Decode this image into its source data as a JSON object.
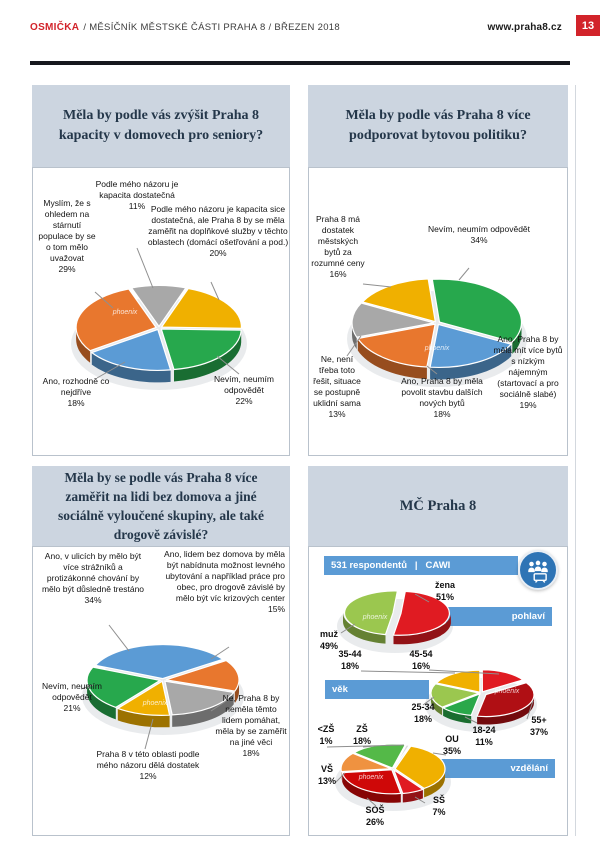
{
  "header": {
    "magazine": "OSMIČKA",
    "subtitle": "/ MĚSÍČNÍK MĚSTSKÉ ČÁSTI PRAHA 8 / BŘEZEN 2018",
    "website": "www.praha8.cz",
    "page_number": "13"
  },
  "demographics": {
    "panel_title": "MČ Praha 8",
    "respondents_bar": "531 respondentů   |   CAWI"
  },
  "colors": {
    "accent_red": "#d2232a",
    "bar_blue": "#5b9bd5",
    "icon_blue": "#2e74b5",
    "panel_header": "#ccd5e0",
    "rule_black": "#16181d"
  },
  "chart_data": [
    {
      "id": "seniors",
      "type": "pie",
      "title": "Měla by podle vás zvýšit Praha 8 kapacity v domovech pro seniory?",
      "watermark": "phoenix",
      "slices": [
        {
          "label": "Podle mého názoru je kapacita dostatečná",
          "pct": "11%",
          "value": 11,
          "color": "#a8a8a8"
        },
        {
          "label": "Podle mého názoru je kapacita sice dostatečná, ale Praha 8 by se měla zaměřit na doplňkové služby v těchto oblastech (domácí ošetřování a pod.)",
          "pct": "20%",
          "value": 20,
          "color": "#f0b000"
        },
        {
          "label": "Nevím, neumím odpovědět",
          "pct": "22%",
          "value": 22,
          "color": "#27a84d"
        },
        {
          "label": "Ano, rozhodně co nejdříve",
          "pct": "18%",
          "value": 18,
          "color": "#5b9bd5"
        },
        {
          "label": "Myslím, že s ohledem na stárnutí populace by se o tom mělo uvažovat",
          "pct": "29%",
          "value": 29,
          "color": "#e8772e"
        }
      ]
    },
    {
      "id": "housing",
      "type": "pie",
      "title": "Měla by podle vás Praha 8 více podporovat bytovou politiku?",
      "watermark": "phoenix",
      "slices": [
        {
          "label": "Nevím, neumím odpovědět",
          "pct": "34%",
          "value": 34,
          "color": "#27a84d"
        },
        {
          "label": "Ano, Praha 8 by měla mít více bytů s nízkým nájemným (startovací a pro sociálně slabé)",
          "pct": "19%",
          "value": 19,
          "color": "#5b9bd5"
        },
        {
          "label": "Ano, Praha 8 by měla povolit stavbu dalších nových bytů",
          "pct": "18%",
          "value": 18,
          "color": "#e8772e"
        },
        {
          "label": "Ne, není třeba toto řešit, situace se postupně uklidní sama",
          "pct": "13%",
          "value": 13,
          "color": "#a8a8a8"
        },
        {
          "label": "Praha 8 má dostatek městských bytů za rozumné ceny",
          "pct": "16%",
          "value": 16,
          "color": "#f0b000"
        }
      ]
    },
    {
      "id": "homeless",
      "type": "pie",
      "title": "Měla by se podle vás Praha 8 více zaměřit na lidi bez domova a jiné sociálně vyloučené skupiny, ale také drogově závislé?",
      "watermark": "phoenix",
      "slices": [
        {
          "label": "Ano, v ulicích by mělo být více strážníků a protizákonné chování by mělo být důsledně trestáno",
          "pct": "34%",
          "value": 34,
          "color": "#5b9bd5"
        },
        {
          "label": "Ano, lidem bez domova by měla být nabídnuta možnost levného ubytování a například práce pro obec, pro drogově závislé by mělo být víc krizových center",
          "pct": "15%",
          "value": 15,
          "color": "#e8772e"
        },
        {
          "label": "Ne, Praha 8 by neměla těmto lidem pomáhat, měla by se zaměřit na jiné věci",
          "pct": "18%",
          "value": 18,
          "color": "#a8a8a8"
        },
        {
          "label": "Praha 8 v této oblasti podle mého názoru dělá dostatek",
          "pct": "12%",
          "value": 12,
          "color": "#f0b000"
        },
        {
          "label": "Nevím, neumím odpovědět",
          "pct": "21%",
          "value": 21,
          "color": "#27a84d"
        }
      ]
    },
    {
      "id": "gender",
      "type": "pie",
      "group": "pohlaví",
      "watermark": "phoenix",
      "slices": [
        {
          "label": "žena",
          "pct": "51%",
          "value": 51,
          "color": "#e01b22"
        },
        {
          "label": "muž",
          "pct": "49%",
          "value": 49,
          "color": "#9bc74f"
        }
      ]
    },
    {
      "id": "age",
      "type": "pie",
      "group": "věk",
      "watermark": "phoenix",
      "slices": [
        {
          "label": "35-44",
          "pct": "18%",
          "value": 18,
          "color": "#f0b000"
        },
        {
          "label": "45-54",
          "pct": "16%",
          "value": 16,
          "color": "#e01b22"
        },
        {
          "label": "55+",
          "pct": "37%",
          "value": 37,
          "color": "#b00f14"
        },
        {
          "label": "18-24",
          "pct": "11%",
          "value": 11,
          "color": "#2aa84a"
        },
        {
          "label": "25-34",
          "pct": "18%",
          "value": 18,
          "color": "#9bc74f"
        }
      ]
    },
    {
      "id": "education",
      "type": "pie",
      "group": "vzdělání",
      "watermark": "phoenix",
      "slices": [
        {
          "label": "ZŠ",
          "pct": "18%",
          "value": 18,
          "color": "#54b948"
        },
        {
          "label": "<ZŠ",
          "pct": "1%",
          "value": 1,
          "color": "#dcdcdc"
        },
        {
          "label": "OU",
          "pct": "35%",
          "value": 35,
          "color": "#f0b000"
        },
        {
          "label": "SŠ",
          "pct": "7%",
          "value": 7,
          "color": "#e01b22"
        },
        {
          "label": "SOŠ",
          "pct": "26%",
          "value": 26,
          "color": "#cf0808"
        },
        {
          "label": "VŠ",
          "pct": "13%",
          "value": 13,
          "color": "#ef9240"
        }
      ]
    }
  ]
}
